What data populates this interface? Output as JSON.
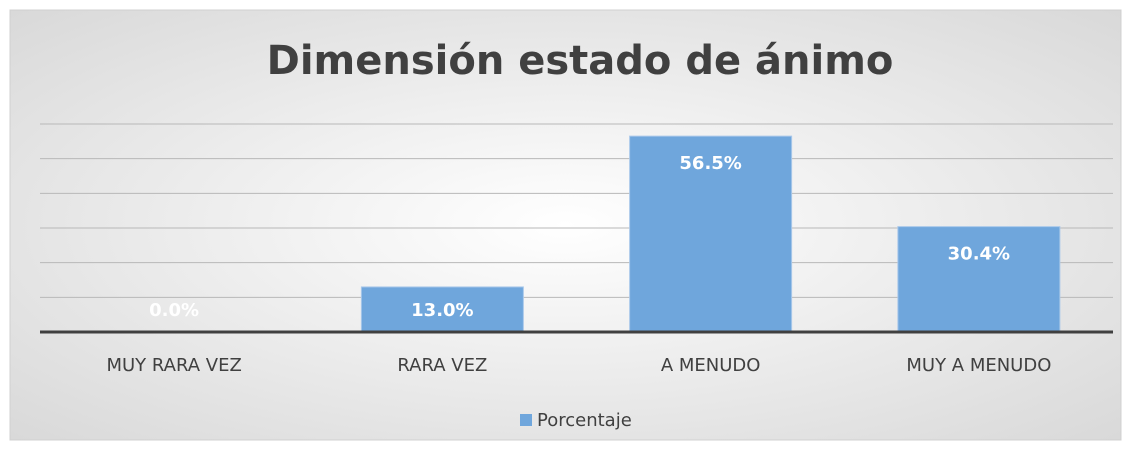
{
  "chart_data": {
    "type": "bar",
    "title": "Dimensión estado de ánimo",
    "categories": [
      "MUY RARA VEZ",
      "RARA VEZ",
      "A MENUDO",
      "MUY A MENUDO"
    ],
    "series": [
      {
        "name": "Porcentaje",
        "color": "#6fa6dc",
        "values": [
          0.0,
          13.0,
          56.5,
          30.4
        ],
        "value_labels": [
          "0.0%",
          "13.0%",
          "56.5%",
          "30.4%"
        ]
      }
    ],
    "ylim": [
      0,
      60
    ],
    "yticks": [
      0,
      10,
      20,
      30,
      40,
      50,
      60
    ],
    "grid": true,
    "legend": "bottom"
  }
}
